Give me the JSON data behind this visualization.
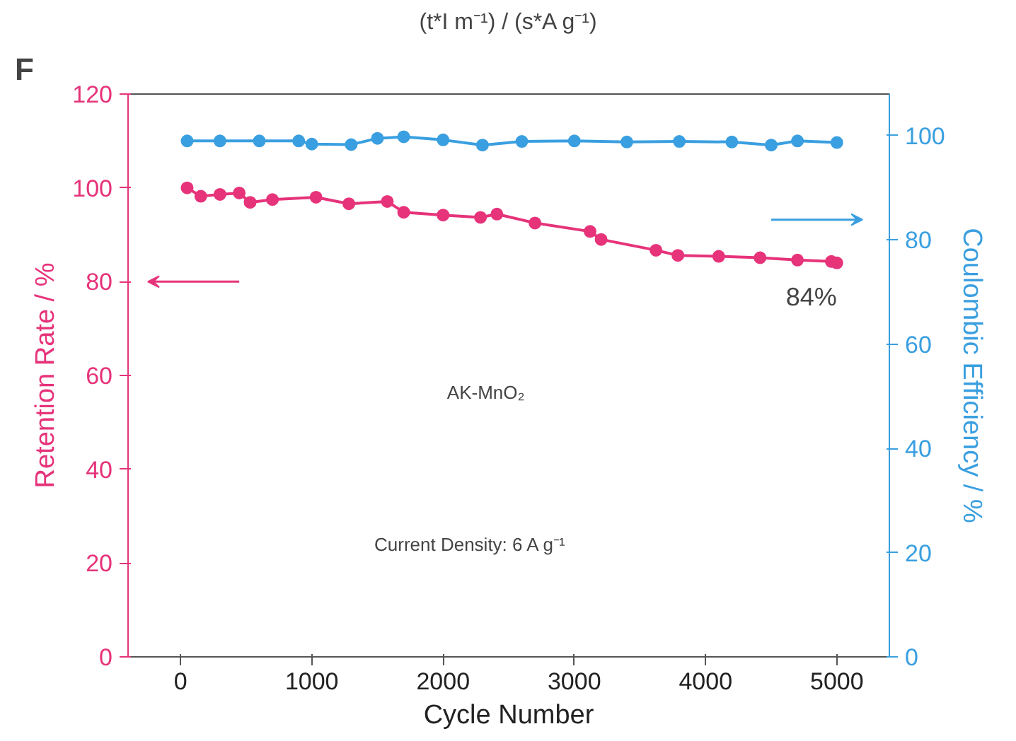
{
  "chart_data": {
    "type": "line",
    "marker": "circle",
    "annotations": [
      "F",
      "(t*I m⁻¹) / (s*A g⁻¹)",
      "AK-MnO₂",
      "Current Density: 6 A g⁻¹",
      "84%"
    ],
    "xlabel": "Cycle Number",
    "ylabel": "Retention Rate / %",
    "y2label": "Coulombic Efficiency / %",
    "xlim": [
      -400,
      5400
    ],
    "xticks": [
      0,
      1000,
      2000,
      3000,
      4000,
      5000
    ],
    "ylim": [
      0,
      120
    ],
    "yticks": [
      0,
      20,
      40,
      60,
      80,
      100,
      120
    ],
    "y2lim": [
      0,
      108
    ],
    "y2ticks": [
      0,
      20,
      40,
      60,
      80,
      100
    ],
    "series": [
      {
        "color": "#e6337a",
        "x": [
          50,
          154,
          300,
          447,
          530,
          700,
          1032,
          1282,
          1575,
          1700,
          2000,
          2285,
          2410,
          2700,
          3120,
          3204,
          3622,
          3789,
          4100,
          4415,
          4700,
          4958,
          5000
        ],
        "values": [
          100,
          98.2,
          98.6,
          98.9,
          96.9,
          97.5,
          98,
          96.6,
          97.1,
          94.8,
          94.2,
          93.7,
          94.4,
          92.5,
          90.7,
          89,
          86.7,
          85.6,
          85.4,
          85.1,
          84.6,
          84.3,
          84
        ]
      },
      {
        "color": "#3a9fe0",
        "axis": "y2",
        "x": [
          50,
          300,
          600,
          900,
          1000,
          1300,
          1500,
          1700,
          2000,
          2300,
          2600,
          3000,
          3400,
          3800,
          4200,
          4500,
          4700,
          5000
        ],
        "values": [
          99,
          99,
          99,
          99,
          98.4,
          98.3,
          99.5,
          99.8,
          99.2,
          98.2,
          98.9,
          99,
          98.8,
          98.9,
          98.8,
          98.2,
          99,
          98.7
        ]
      }
    ]
  }
}
